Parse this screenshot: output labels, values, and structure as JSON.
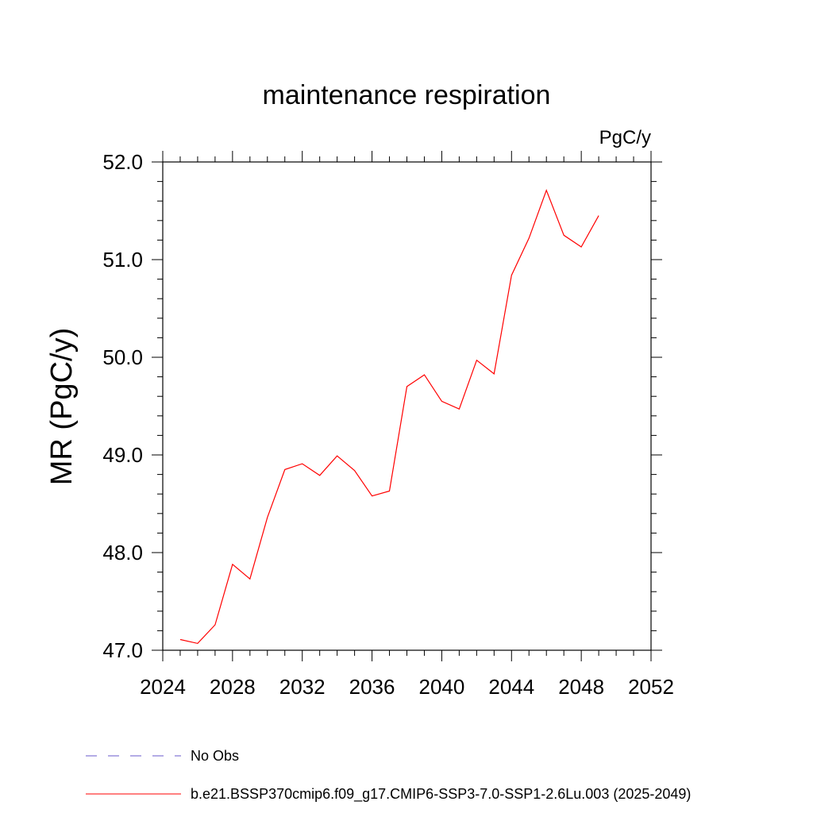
{
  "chart_data": {
    "type": "line",
    "title": "maintenance respiration",
    "units_label": "PgC/y",
    "ylabel": "MR  (PgC/y)",
    "xlabel": "",
    "xlim": [
      2024,
      2052
    ],
    "ylim": [
      47.0,
      52.0
    ],
    "x_ticks": [
      2024,
      2028,
      2032,
      2036,
      2040,
      2044,
      2048,
      2052
    ],
    "x_tick_labels": [
      "2024",
      "2028",
      "2032",
      "2036",
      "2040",
      "2044",
      "2048",
      "2052"
    ],
    "y_ticks": [
      47.0,
      48.0,
      49.0,
      50.0,
      51.0,
      52.0
    ],
    "y_tick_labels": [
      "47.0",
      "48.0",
      "49.0",
      "50.0",
      "51.0",
      "52.0"
    ],
    "grid": false,
    "legend_position": "bottom",
    "series": [
      {
        "name": "b.e21.BSSP370cmip6.f09_g17.CMIP6-SSP3-7.0-SSP1-2.6Lu.003 (2025-2049)",
        "color": "#ff0000",
        "dash": "solid",
        "x": [
          2025,
          2026,
          2027,
          2028,
          2029,
          2030,
          2031,
          2032,
          2033,
          2034,
          2035,
          2036,
          2037,
          2038,
          2039,
          2040,
          2041,
          2042,
          2043,
          2044,
          2045,
          2046,
          2047,
          2048,
          2049
        ],
        "y": [
          47.11,
          47.07,
          47.26,
          47.88,
          47.73,
          48.36,
          48.85,
          48.91,
          48.79,
          48.99,
          48.84,
          48.58,
          48.63,
          49.7,
          49.82,
          49.55,
          49.47,
          49.97,
          49.83,
          50.84,
          51.22,
          51.71,
          51.25,
          51.13,
          51.45
        ]
      }
    ],
    "legend": [
      {
        "name": "No Obs",
        "color": "#6a5acd",
        "dash": "dashed"
      },
      {
        "name": "b.e21.BSSP370cmip6.f09_g17.CMIP6-SSP3-7.0-SSP1-2.6Lu.003 (2025-2049)",
        "color": "#ff0000",
        "dash": "solid"
      }
    ]
  }
}
